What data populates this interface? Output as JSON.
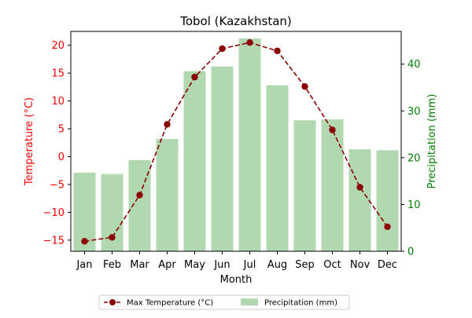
{
  "chart_data": {
    "type": "bar+line",
    "title": "Tobol (Kazakhstan)",
    "xlabel": "Month",
    "ylabel_left": "Temperature (°C)",
    "ylabel_right": "Precipitation (mm)",
    "categories": [
      "Jan",
      "Feb",
      "Mar",
      "Apr",
      "May",
      "Jun",
      "Jul",
      "Aug",
      "Sep",
      "Oct",
      "Nov",
      "Dec"
    ],
    "ylim_left": [
      -17,
      22.5
    ],
    "yticks_left": [
      -15,
      -10,
      -5,
      0,
      5,
      10,
      15,
      20
    ],
    "ylim_right": [
      0,
      47
    ],
    "yticks_right": [
      0,
      10,
      20,
      30,
      40
    ],
    "grid": false,
    "legend_position": "bottom-center",
    "series": [
      {
        "name": "Max Temperature (°C)",
        "kind": "line",
        "axis": "left",
        "color": "#8b0000",
        "linestyle": "dashed",
        "marker": "circle",
        "values": [
          -15.2,
          -14.5,
          -6.9,
          5.8,
          14.3,
          19.4,
          20.5,
          19.0,
          12.6,
          4.8,
          -5.5,
          -12.6
        ]
      },
      {
        "name": "Precipitation (mm)",
        "kind": "bar",
        "axis": "right",
        "color": "#b2d8b2",
        "values": [
          16.8,
          16.5,
          19.5,
          24.0,
          38.5,
          39.5,
          45.5,
          35.5,
          28.0,
          28.2,
          21.8,
          21.6
        ]
      }
    ],
    "colors": {
      "left_axis": "#ff0000",
      "right_axis": "#008000",
      "line": "#8b0000",
      "bar": "#b2d8b2"
    }
  }
}
